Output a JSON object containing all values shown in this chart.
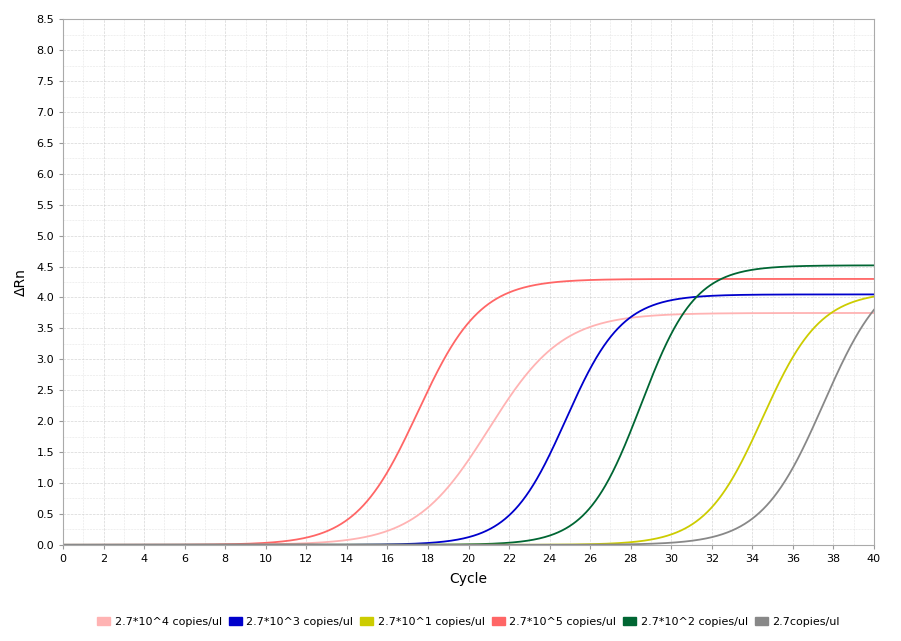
{
  "xlabel": "Cycle",
  "ylabel": "ΔRn",
  "xlim": [
    0,
    40
  ],
  "ylim": [
    0,
    8.5
  ],
  "yticks": [
    0.0,
    0.5,
    1.0,
    1.5,
    2.0,
    2.5,
    3.0,
    3.5,
    4.0,
    4.5,
    5.0,
    5.5,
    6.0,
    6.5,
    7.0,
    7.5,
    8.0,
    8.5
  ],
  "xticks": [
    0,
    2,
    4,
    6,
    8,
    10,
    12,
    14,
    16,
    18,
    20,
    22,
    24,
    26,
    28,
    30,
    32,
    34,
    36,
    38,
    40
  ],
  "curves": [
    {
      "color": "#FF6666",
      "L": 4.3,
      "k": 0.65,
      "x0": 17.5,
      "baseline": 0.0
    },
    {
      "color": "#FFB3B3",
      "L": 3.75,
      "k": 0.55,
      "x0": 21.0,
      "baseline": 0.0
    },
    {
      "color": "#0000CC",
      "L": 4.05,
      "k": 0.72,
      "x0": 24.8,
      "baseline": 0.0
    },
    {
      "color": "#006633",
      "L": 4.52,
      "k": 0.75,
      "x0": 28.5,
      "baseline": 0.0
    },
    {
      "color": "#CCCC00",
      "L": 4.1,
      "k": 0.7,
      "x0": 34.5,
      "baseline": 0.0
    },
    {
      "color": "#888888",
      "L": 4.55,
      "k": 0.65,
      "x0": 37.5,
      "baseline": 0.0
    }
  ],
  "legend_entries": [
    {
      "label": "2.7*10^4 copies/ul",
      "color": "#FFB3B3"
    },
    {
      "label": "2.7*10^3 copies/ul",
      "color": "#0000CC"
    },
    {
      "label": "2.7*10^1 copies/ul",
      "color": "#CCCC00"
    },
    {
      "label": "2.7*10^5 copies/ul",
      "color": "#FF6666"
    },
    {
      "label": "2.7*10^2 copies/ul",
      "color": "#006633"
    },
    {
      "label": "2.7copies/ul",
      "color": "#888888"
    }
  ],
  "background_color": "#FFFFFF",
  "grid_color": "#CCCCCC",
  "tick_fontsize": 8,
  "label_fontsize": 10,
  "linewidth": 1.3
}
